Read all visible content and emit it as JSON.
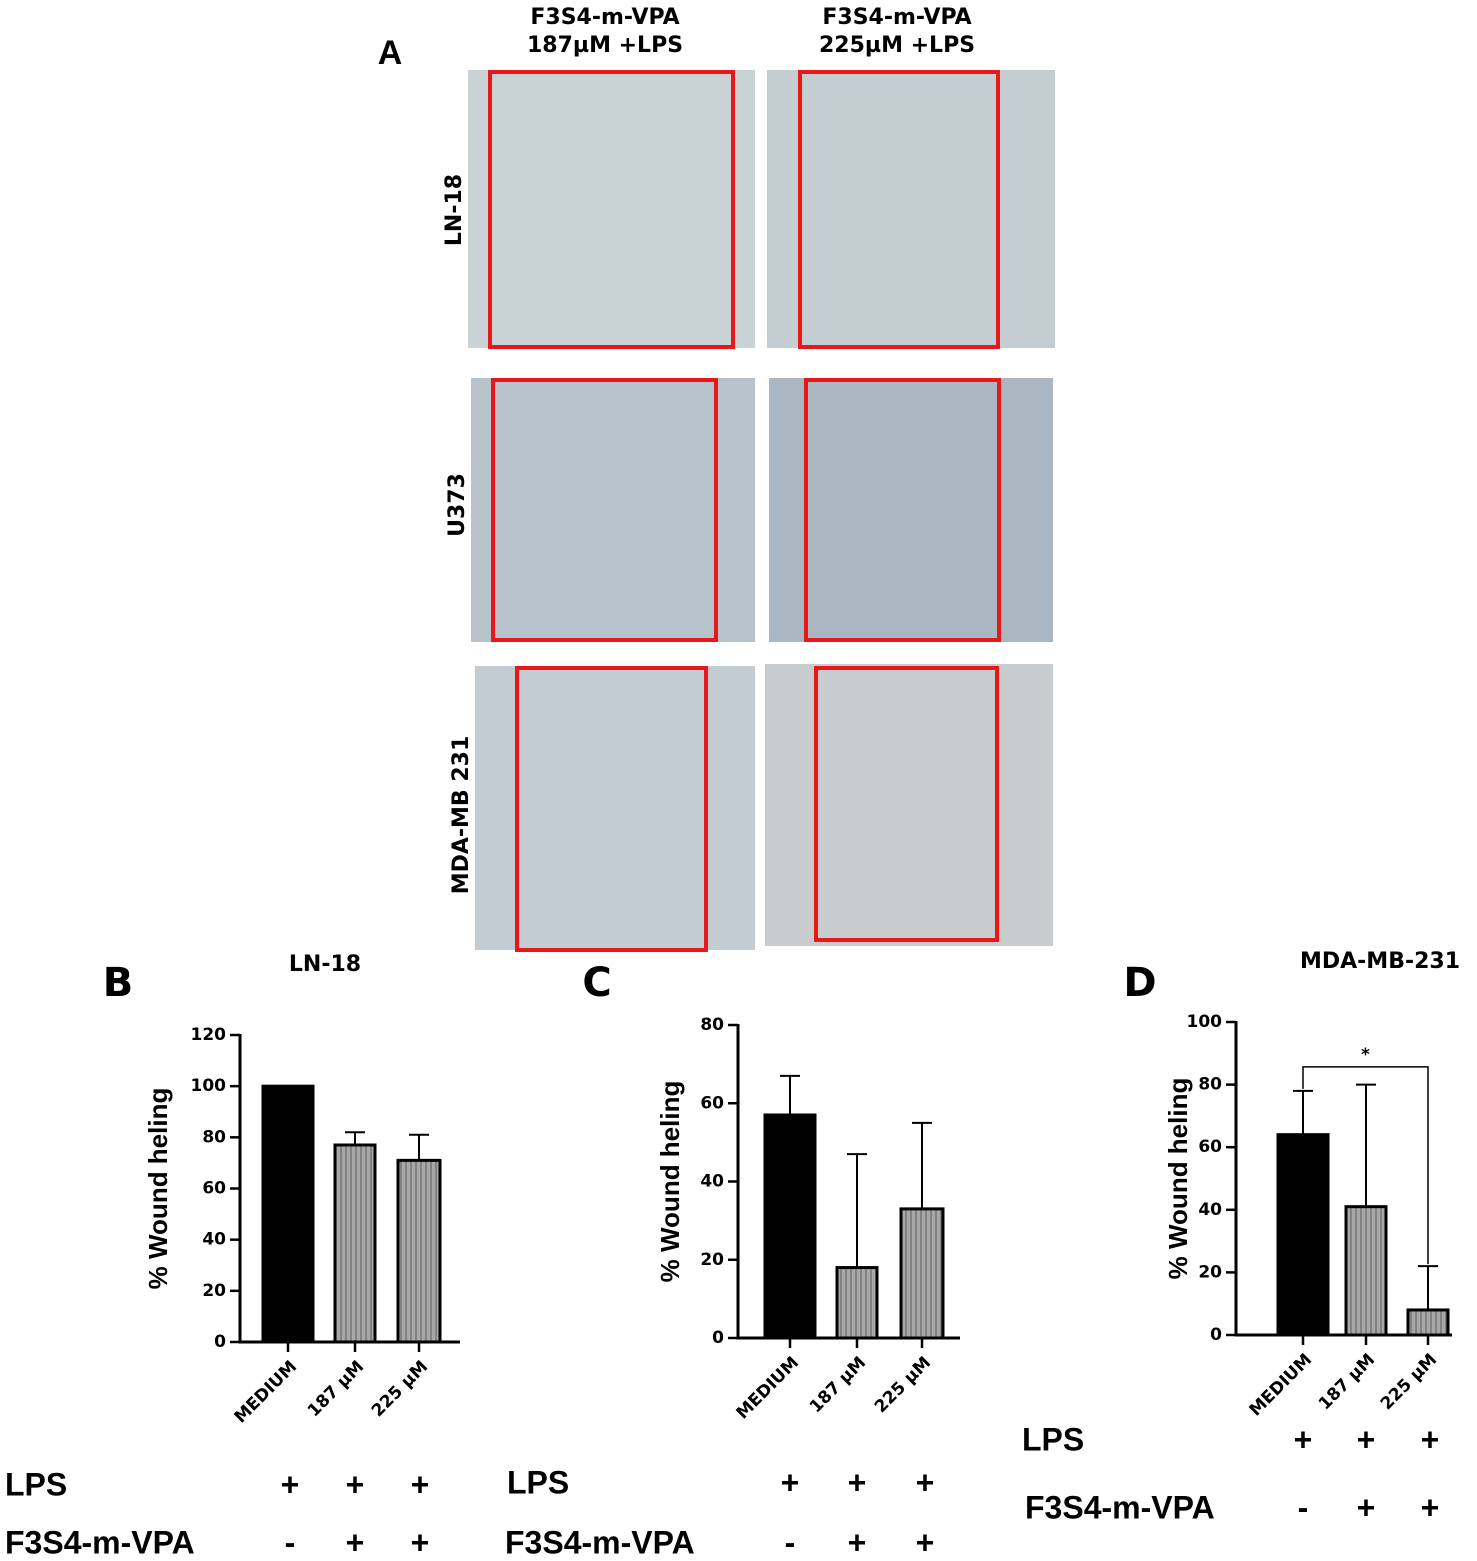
{
  "panel_a": {
    "label": "A",
    "columns": [
      [
        "F3S4-m-VPA",
        "187µM +LPS"
      ],
      [
        "F3S4-m-VPA",
        "225µM +LPS"
      ]
    ],
    "rows": [
      "LN-18",
      "U373",
      "MDA-MB 231"
    ]
  },
  "chart_data": [
    {
      "type": "bar",
      "panel": "B",
      "title": "LN-18",
      "y_label": "% Wound heling",
      "categories": [
        "MEDIUM",
        "187 µM",
        "225 µM"
      ],
      "values": [
        100,
        77,
        71
      ],
      "errors": [
        0,
        5,
        10
      ],
      "colors": [
        "#000000",
        "#999999",
        "#999999"
      ],
      "ylim": [
        0,
        120
      ],
      "yticks": [
        0,
        20,
        40,
        60,
        80,
        100,
        120
      ],
      "treatments": [
        {
          "name": "LPS",
          "marks": [
            "+",
            "+",
            "+"
          ]
        },
        {
          "name": "F3S4-m-VPA",
          "marks": [
            "-",
            "+",
            "+"
          ]
        }
      ]
    },
    {
      "type": "bar",
      "panel": "C",
      "y_label": "% Wound heling",
      "categories": [
        "MEDIUM",
        "187 µM",
        "225 µM"
      ],
      "values": [
        57,
        18,
        33
      ],
      "errors": [
        10,
        29,
        22
      ],
      "colors": [
        "#000000",
        "#999999",
        "#999999"
      ],
      "ylim": [
        0,
        80
      ],
      "yticks": [
        0,
        20,
        40,
        60,
        80
      ],
      "treatments": [
        {
          "name": "LPS",
          "marks": [
            "+",
            "+",
            "+"
          ]
        },
        {
          "name": "F3S4-m-VPA",
          "marks": [
            "-",
            "+",
            "+"
          ]
        }
      ]
    },
    {
      "type": "bar",
      "panel": "D",
      "title": "MDA-MB-231",
      "y_label": "% Wound heling",
      "categories": [
        "MEDIUM",
        "187 µM",
        "225 µM"
      ],
      "values": [
        64,
        41,
        8
      ],
      "errors": [
        14,
        39,
        14
      ],
      "colors": [
        "#000000",
        "#999999",
        "#999999"
      ],
      "ylim": [
        0,
        100
      ],
      "yticks": [
        0,
        20,
        40,
        60,
        80,
        100
      ],
      "significance": {
        "from": 0,
        "to": 2,
        "label": "*"
      },
      "treatments": [
        {
          "name": "LPS",
          "marks": [
            "+",
            "+",
            "+"
          ]
        },
        {
          "name": "F3S4-m-VPA",
          "marks": [
            "-",
            "+",
            "+"
          ]
        }
      ]
    }
  ]
}
